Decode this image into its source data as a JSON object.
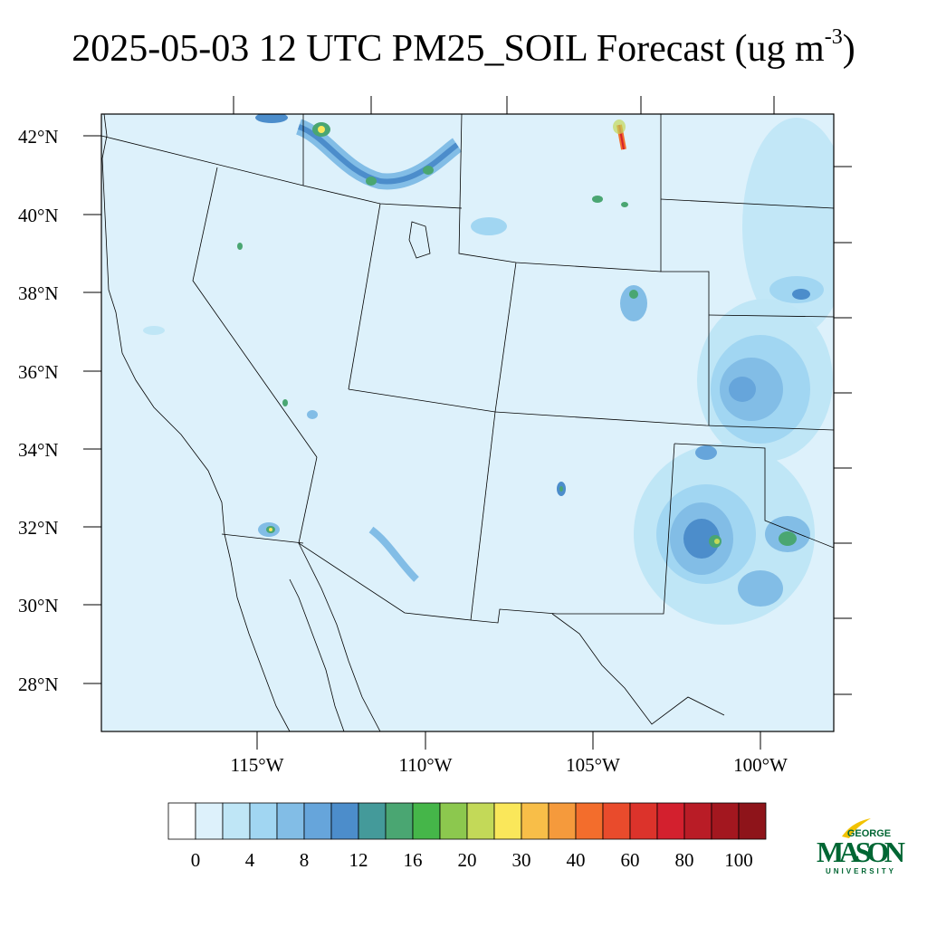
{
  "title": {
    "date": "2025-05-03",
    "hour": "12 UTC",
    "variable": "PM25_SOIL",
    "kind": "Forecast",
    "units_prefix": "(ug m",
    "units_exp": "-3",
    "units_suffix": ")"
  },
  "map": {
    "lat_labels": [
      "42°N",
      "40°N",
      "38°N",
      "36°N",
      "34°N",
      "32°N",
      "30°N",
      "28°N"
    ],
    "lon_labels": [
      "115°W",
      "110°W",
      "105°W",
      "100°W"
    ],
    "fill_color": "#ddf1fb"
  },
  "colorbar": {
    "colors": [
      "#ffffff",
      "#ddf1fb",
      "#bfe6f6",
      "#a1d6f2",
      "#82bde6",
      "#66a5db",
      "#4c8dcb",
      "#449a9a",
      "#4aa672",
      "#45b649",
      "#8cc84e",
      "#c3d958",
      "#fae75a",
      "#f8be48",
      "#f59a3c",
      "#f36d2c",
      "#e94b2c",
      "#dc332b",
      "#d3202e",
      "#b91c26",
      "#a3171f",
      "#8e141a"
    ],
    "tick_labels": [
      "0",
      "4",
      "8",
      "12",
      "16",
      "20",
      "30",
      "40",
      "60",
      "80",
      "100"
    ]
  },
  "logo": {
    "line1": "GEORGE",
    "line2": "MASON",
    "line3": "UNIVERSITY",
    "color": "#006633",
    "accent": "#f2c200"
  }
}
